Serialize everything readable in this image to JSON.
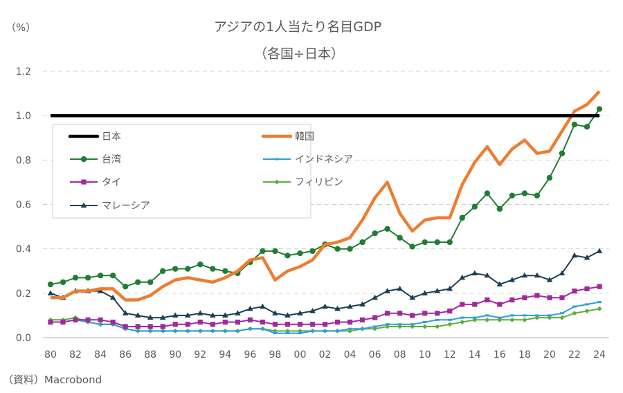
{
  "chart_data": {
    "type": "line",
    "title": "アジアの1人当たり名目GDP",
    "subtitle": "（各国÷日本）",
    "ylabel": "（%）",
    "xlabel": "",
    "source": "（資料）Macrobond",
    "ylim": [
      0.0,
      1.2
    ],
    "yticks": [
      "0.0",
      "0.2",
      "0.4",
      "0.6",
      "0.8",
      "1.0",
      "1.2"
    ],
    "xticks": [
      "80",
      "82",
      "84",
      "86",
      "88",
      "90",
      "92",
      "94",
      "96",
      "98",
      "00",
      "02",
      "04",
      "06",
      "08",
      "10",
      "12",
      "14",
      "16",
      "18",
      "20",
      "22",
      "24"
    ],
    "grid": "horizontal-dashed",
    "legend_position": "upper-left",
    "x": [
      1980,
      1981,
      1982,
      1983,
      1984,
      1985,
      1986,
      1987,
      1988,
      1989,
      1990,
      1991,
      1992,
      1993,
      1994,
      1995,
      1996,
      1997,
      1998,
      1999,
      2000,
      2001,
      2002,
      2003,
      2004,
      2005,
      2006,
      2007,
      2008,
      2009,
      2010,
      2011,
      2012,
      2013,
      2014,
      2015,
      2016,
      2017,
      2018,
      2019,
      2020,
      2021,
      2022,
      2023,
      2024
    ],
    "series": [
      {
        "name": "日本",
        "color": "#000000",
        "marker": "none",
        "values": [
          1,
          1,
          1,
          1,
          1,
          1,
          1,
          1,
          1,
          1,
          1,
          1,
          1,
          1,
          1,
          1,
          1,
          1,
          1,
          1,
          1,
          1,
          1,
          1,
          1,
          1,
          1,
          1,
          1,
          1,
          1,
          1,
          1,
          1,
          1,
          1,
          1,
          1,
          1,
          1,
          1,
          1,
          1,
          1,
          1
        ]
      },
      {
        "name": "韓国",
        "color": "#ED7D31",
        "marker": "none",
        "values": [
          0.18,
          0.18,
          0.21,
          0.21,
          0.22,
          0.22,
          0.17,
          0.17,
          0.19,
          0.23,
          0.26,
          0.27,
          0.26,
          0.25,
          0.27,
          0.3,
          0.35,
          0.36,
          0.26,
          0.3,
          0.32,
          0.35,
          0.42,
          0.43,
          0.45,
          0.53,
          0.63,
          0.7,
          0.56,
          0.48,
          0.53,
          0.54,
          0.54,
          0.69,
          0.79,
          0.86,
          0.78,
          0.85,
          0.89,
          0.83,
          0.84,
          0.93,
          1.02,
          1.05,
          1.11
        ]
      },
      {
        "name": "台湾",
        "color": "#217C34",
        "marker": "circle",
        "values": [
          0.24,
          0.25,
          0.27,
          0.27,
          0.28,
          0.28,
          0.23,
          0.25,
          0.25,
          0.3,
          0.31,
          0.31,
          0.33,
          0.31,
          0.3,
          0.29,
          0.34,
          0.39,
          0.39,
          0.37,
          0.38,
          0.39,
          0.42,
          0.4,
          0.4,
          0.43,
          0.47,
          0.49,
          0.45,
          0.41,
          0.43,
          0.43,
          0.43,
          0.54,
          0.59,
          0.65,
          0.58,
          0.64,
          0.65,
          0.64,
          0.72,
          0.83,
          0.96,
          0.95,
          1.03
        ]
      },
      {
        "name": "インドネシア",
        "color": "#2E9FD8",
        "marker": "dash",
        "values": [
          0.07,
          0.07,
          0.08,
          0.07,
          0.06,
          0.06,
          0.04,
          0.03,
          0.03,
          0.03,
          0.03,
          0.03,
          0.03,
          0.03,
          0.03,
          0.03,
          0.04,
          0.04,
          0.02,
          0.02,
          0.02,
          0.03,
          0.03,
          0.03,
          0.04,
          0.04,
          0.05,
          0.06,
          0.06,
          0.06,
          0.07,
          0.08,
          0.08,
          0.09,
          0.09,
          0.1,
          0.09,
          0.1,
          0.1,
          0.1,
          0.1,
          0.11,
          0.14,
          0.15,
          0.16
        ]
      },
      {
        "name": "タイ",
        "color": "#A0299E",
        "marker": "square",
        "values": [
          0.07,
          0.07,
          0.08,
          0.08,
          0.08,
          0.07,
          0.05,
          0.05,
          0.05,
          0.05,
          0.06,
          0.06,
          0.07,
          0.06,
          0.07,
          0.07,
          0.08,
          0.07,
          0.06,
          0.06,
          0.06,
          0.06,
          0.06,
          0.07,
          0.07,
          0.08,
          0.09,
          0.11,
          0.11,
          0.1,
          0.11,
          0.11,
          0.12,
          0.15,
          0.15,
          0.17,
          0.15,
          0.17,
          0.18,
          0.19,
          0.18,
          0.18,
          0.21,
          0.22,
          0.23
        ]
      },
      {
        "name": "フィリピン",
        "color": "#5BAE3A",
        "marker": "diamond",
        "values": [
          0.08,
          0.08,
          0.09,
          0.07,
          0.06,
          0.06,
          0.04,
          0.03,
          0.03,
          0.03,
          0.03,
          0.03,
          0.03,
          0.03,
          0.03,
          0.03,
          0.04,
          0.04,
          0.03,
          0.03,
          0.03,
          0.03,
          0.03,
          0.03,
          0.03,
          0.04,
          0.04,
          0.05,
          0.05,
          0.05,
          0.05,
          0.05,
          0.06,
          0.07,
          0.08,
          0.08,
          0.08,
          0.08,
          0.08,
          0.09,
          0.09,
          0.09,
          0.11,
          0.12,
          0.13
        ]
      },
      {
        "name": "マレーシア",
        "color": "#1B3E55",
        "marker": "triangle",
        "values": [
          0.2,
          0.18,
          0.21,
          0.21,
          0.21,
          0.18,
          0.11,
          0.1,
          0.09,
          0.09,
          0.1,
          0.1,
          0.11,
          0.1,
          0.1,
          0.11,
          0.13,
          0.14,
          0.11,
          0.1,
          0.11,
          0.12,
          0.14,
          0.13,
          0.14,
          0.15,
          0.18,
          0.21,
          0.22,
          0.18,
          0.2,
          0.21,
          0.22,
          0.27,
          0.29,
          0.28,
          0.24,
          0.26,
          0.28,
          0.28,
          0.26,
          0.29,
          0.37,
          0.36,
          0.39
        ]
      }
    ],
    "legend": {
      "items": [
        {
          "label": "日本",
          "series": 0
        },
        {
          "label": "韓国",
          "series": 1
        },
        {
          "label": "台湾",
          "series": 2
        },
        {
          "label": "インドネシア",
          "series": 3
        },
        {
          "label": "タイ",
          "series": 4
        },
        {
          "label": "フィリピン",
          "series": 5
        },
        {
          "label": "マレーシア",
          "series": 6
        }
      ]
    }
  }
}
